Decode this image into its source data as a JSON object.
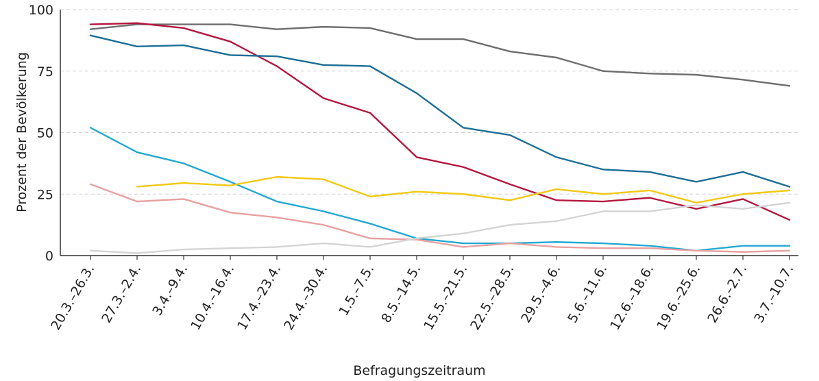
{
  "chart_data": {
    "type": "line",
    "title": "",
    "xlabel": "Befragungszeitraum",
    "ylabel": "Prozent der Bevölkerung",
    "ylim": [
      0,
      100
    ],
    "yticks": [
      0,
      25,
      50,
      75,
      100
    ],
    "grid": true,
    "categories": [
      "20.3.–26.3.",
      "27.3.–2.4.",
      "3.4.–9.4.",
      "10.4.–16.4.",
      "17.4.–23.4.",
      "24.4.–30.4.",
      "1.5.–7.5.",
      "8.5.–14.5.",
      "15.5.–21.5.",
      "22.5.–28.5.",
      "29.5.–4.6.",
      "5.6.–11.6.",
      "12.6.–18.6.",
      "19.6.–25.6.",
      "26.6.–2.7.",
      "3.7.–10.7."
    ],
    "series": [
      {
        "name": "Grau",
        "color": "#6e6e6e",
        "values": [
          92,
          94,
          94,
          94,
          92,
          93,
          92.5,
          88,
          88,
          83,
          80.5,
          75,
          74,
          73.5,
          71.5,
          69
        ]
      },
      {
        "name": "Rot",
        "color": "#b5163f",
        "values": [
          94,
          94.5,
          92.5,
          87,
          77,
          64,
          58,
          40,
          36,
          29,
          22.5,
          22,
          23.5,
          19,
          23,
          14.5
        ]
      },
      {
        "name": "Petrol",
        "color": "#1d6e96",
        "values": [
          89.5,
          85,
          85.5,
          81.5,
          81,
          77.5,
          77,
          66,
          52,
          49,
          40,
          35,
          34,
          30,
          34,
          28
        ]
      },
      {
        "name": "Cyan",
        "color": "#22a9d2",
        "values": [
          52,
          42,
          37.5,
          30,
          22,
          18,
          13,
          7,
          5,
          5,
          5.5,
          5,
          4,
          2,
          4,
          4
        ]
      },
      {
        "name": "Gelb",
        "color": "#f2c811",
        "values": [
          null,
          28,
          29.5,
          28.5,
          32,
          31,
          24,
          26,
          25,
          22.5,
          27,
          25,
          26.5,
          21.5,
          25,
          26.5
        ]
      },
      {
        "name": "Rosa",
        "color": "#e8a0a0",
        "values": [
          29,
          22,
          23,
          17.5,
          15.5,
          12.5,
          7,
          6.5,
          3.5,
          5,
          3.5,
          3,
          3,
          2,
          1.5,
          2
        ]
      },
      {
        "name": "Hellgrau",
        "color": "#d4d4d4",
        "values": [
          2,
          1,
          2.5,
          3,
          3.5,
          5,
          3.5,
          7,
          9,
          12.5,
          14,
          18,
          18,
          20.5,
          19,
          21.5
        ]
      }
    ]
  }
}
